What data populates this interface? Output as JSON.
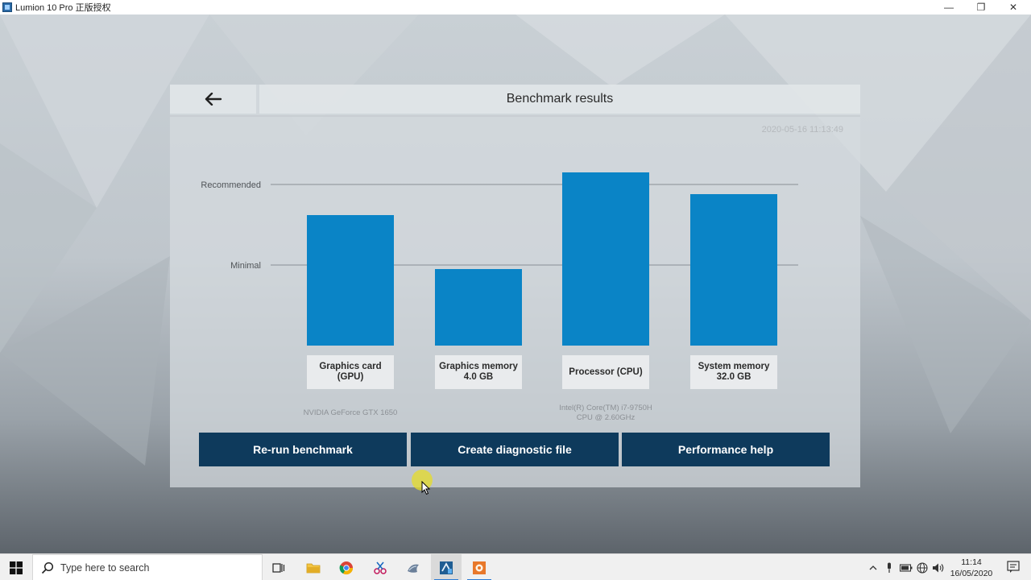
{
  "window": {
    "title": "Lumion 10 Pro 正版授权",
    "minimize": "—",
    "maximize": "❐",
    "close": "✕"
  },
  "panel": {
    "title": "Benchmark results",
    "back_icon": "arrow-left-icon",
    "timestamp": "2020-05-16 11:13:49"
  },
  "chart_data": {
    "type": "bar",
    "categories": [
      "Graphics card (GPU)",
      "Graphics memory 4.0 GB",
      "Processor (CPU)",
      "System memory 32.0 GB"
    ],
    "values": [
      1.62,
      0.95,
      2.15,
      1.88
    ],
    "reference_lines": [
      {
        "label": "Minimal",
        "value": 1.0
      },
      {
        "label": "Recommended",
        "value": 2.0
      }
    ],
    "ylim": [
      0,
      2.4
    ],
    "bar_color": "#0a84c6",
    "grid": false
  },
  "bars": [
    {
      "line1": "Graphics card",
      "line2": "(GPU)",
      "info1": "NVIDIA GeForce GTX 1650",
      "info2": ""
    },
    {
      "line1": "Graphics memory",
      "line2": "4.0 GB",
      "info1": "",
      "info2": ""
    },
    {
      "line1": "Processor (CPU)",
      "line2": "",
      "info1": "Intel(R) Core(TM) i7-9750H",
      "info2": "CPU @ 2.60GHz"
    },
    {
      "line1": "System memory",
      "line2": "32.0 GB",
      "info1": "",
      "info2": ""
    }
  ],
  "buttons": {
    "rerun": "Re-run benchmark",
    "diagnostic": "Create diagnostic file",
    "help": "Performance help"
  },
  "taskbar": {
    "search_placeholder": "Type here to search",
    "time": "11:14",
    "date": "16/05/2020",
    "apps": [
      "task-view-icon",
      "file-explorer-icon",
      "chrome-icon",
      "snipping-tool-icon",
      "app-icon",
      "lumion-icon",
      "lumion-launcher-icon"
    ]
  },
  "colors": {
    "bar": "#0a84c6",
    "button": "#0e3a5c",
    "accent": "#2b7bd4"
  }
}
